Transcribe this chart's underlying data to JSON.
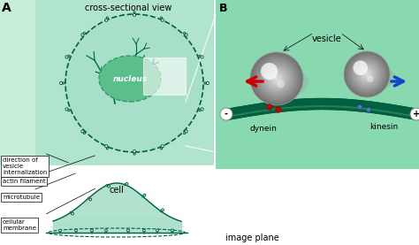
{
  "bg_color": "#ffffff",
  "panel_a_bg_light": "#d0f0e4",
  "panel_a_bg_mid": "#b0e4d0",
  "panel_b_bg": "#88d8b0",
  "cell_fill": "#a8dfc8",
  "nucleus_fill": "#66c49a",
  "nucleus_edge": "#339970",
  "green_dark": "#006040",
  "green_mid": "#008060",
  "green_light": "#40a878",
  "mt_tube_color": "#006040",
  "arrow_red": "#cc0000",
  "arrow_blue": "#1144cc",
  "label_A": "A",
  "label_B": "B",
  "nucleus_text": "nucleus",
  "cell_text": "cell",
  "cross_section_text": "cross-sectional view",
  "image_plane_text": "image plane",
  "label_cellular_membrane": "cellular\nmembrane",
  "label_microtubule": "microtubule",
  "label_actin_filament": "actin filament",
  "label_direction": "direction of\nvesicle\ninternalization",
  "label_vesicle": "vesicle",
  "label_kinesin": "kinesin",
  "label_dynein": "dynein",
  "label_plus": "+",
  "label_minus": "-",
  "bottom_green": "#c0edd8"
}
